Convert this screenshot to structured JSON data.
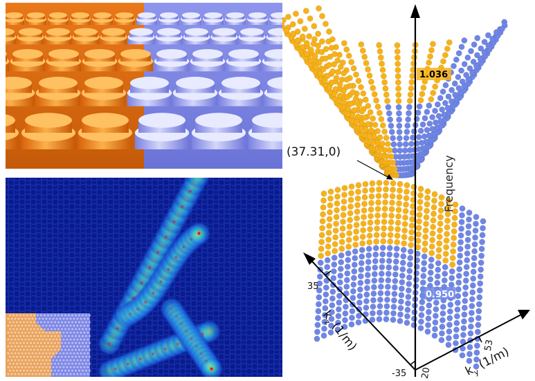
{
  "right_panel": {
    "axis_frequency_label": "Frequency",
    "upper_band_value": "1.036",
    "lower_band_value": "0.950",
    "point_annotation": "(37.31,0)",
    "kz_axis_label": "k",
    "kz_axis_subscript": "z",
    "kz_axis_units": " (1/m)",
    "ky_axis_label": "k",
    "ky_axis_subscript": "y",
    "ky_axis_units": " (1/m)",
    "kz_tick_top": "35",
    "kz_tick_bottom": "-35",
    "ky_tick_mid": "53",
    "ky_tick_origin": "20"
  },
  "colors": {
    "orange": "#f59a1e",
    "blue": "#8c92ef",
    "dot_orange": "#f7b21a",
    "dot_blue": "#6f86e6",
    "field_background": "#0a1a8a"
  }
}
